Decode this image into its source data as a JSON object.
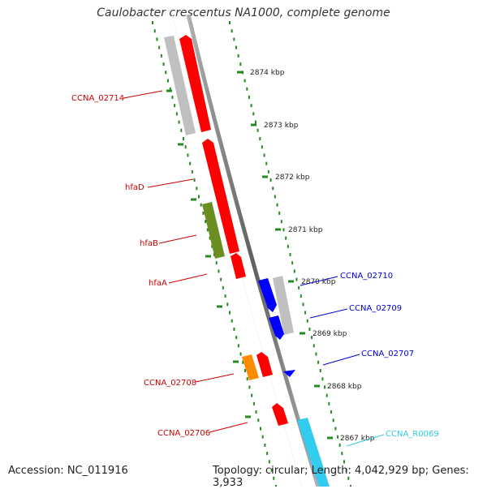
{
  "title": "Caulobacter crescentus NA1000, complete genome",
  "footer": {
    "accession": "Accession: NC_011916",
    "summary": "Topology: circular; Length: 4,042,929 bp; Genes: 3,933"
  },
  "scale": {
    "unit": "kbp",
    "ticks": [
      "2874 kbp",
      "2873 kbp",
      "2872 kbp",
      "2871 kbp",
      "2870 kbp",
      "2869 kbp",
      "2868 kbp",
      "2867 kbp"
    ]
  },
  "genes": [
    {
      "name": "CCNA_02714",
      "strand": "left",
      "color": "#cc0000"
    },
    {
      "name": "hfaD",
      "strand": "left",
      "color": "#cc0000"
    },
    {
      "name": "hfaB",
      "strand": "left",
      "color": "#cc0000"
    },
    {
      "name": "hfaA",
      "strand": "left",
      "color": "#cc0000"
    },
    {
      "name": "CCNA_02710",
      "strand": "right",
      "color": "#0000cc"
    },
    {
      "name": "CCNA_02709",
      "strand": "right",
      "color": "#0000cc"
    },
    {
      "name": "CCNA_02707",
      "strand": "right",
      "color": "#0000cc"
    },
    {
      "name": "CCNA_02708",
      "strand": "left",
      "color": "#cc0000"
    },
    {
      "name": "CCNA_02706",
      "strand": "left",
      "color": "#cc0000"
    },
    {
      "name": "CCNA_R0069",
      "strand": "right",
      "color": "#33ccdd"
    }
  ],
  "colors": {
    "forward_feature": "#ff0000",
    "reverse_feature": "#0000ff",
    "rna_feature": "#33ccee",
    "cog_gray": "#c0c0c0",
    "cog_green": "#6b8e23",
    "cog_orange": "#ff8c00",
    "backbone": "#808080",
    "ticks": "#228b22"
  }
}
